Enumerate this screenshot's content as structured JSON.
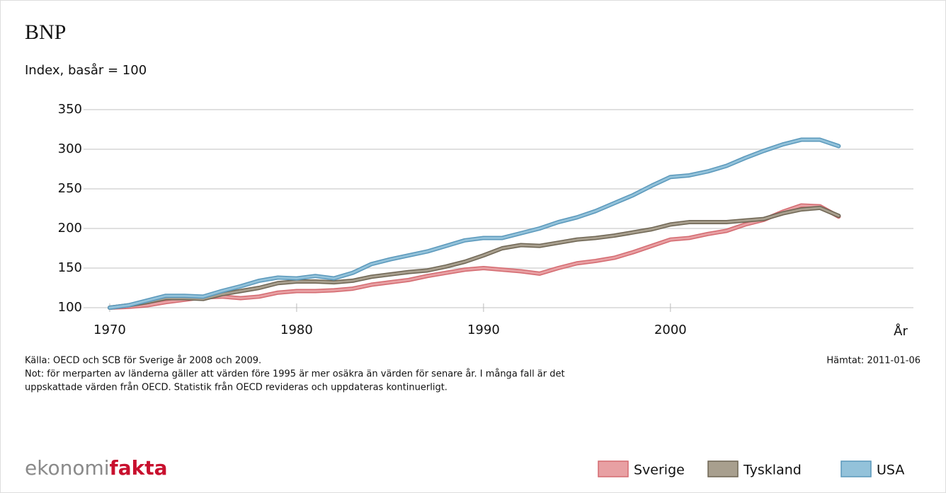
{
  "chart_data": {
    "type": "line",
    "title": "BNP",
    "subtitle": "Index, basår = 100",
    "x_label": "År",
    "x": [
      1970,
      1971,
      1972,
      1973,
      1974,
      1975,
      1976,
      1977,
      1978,
      1979,
      1980,
      1981,
      1982,
      1983,
      1984,
      1985,
      1986,
      1987,
      1988,
      1989,
      1990,
      1991,
      1992,
      1993,
      1994,
      1995,
      1996,
      1997,
      1998,
      1999,
      2000,
      2001,
      2002,
      2003,
      2004,
      2005,
      2006,
      2007,
      2008,
      2009
    ],
    "series": [
      {
        "name": "Sverige",
        "color": "#e8a0a3",
        "edge": "#d46a70",
        "values": [
          100,
          101,
          103,
          107,
          110,
          113,
          114,
          112,
          114,
          119,
          121,
          121,
          122,
          124,
          129,
          132,
          135,
          140,
          144,
          148,
          150,
          148,
          146,
          143,
          150,
          156,
          159,
          163,
          170,
          178,
          186,
          188,
          193,
          197,
          205,
          211,
          221,
          229,
          228,
          215
        ]
      },
      {
        "name": "Tyskland",
        "color": "#a89f8e",
        "edge": "#6e6553",
        "values": [
          100,
          103,
          107,
          112,
          112,
          111,
          117,
          121,
          125,
          131,
          133,
          133,
          132,
          134,
          139,
          142,
          145,
          147,
          152,
          158,
          166,
          175,
          179,
          178,
          182,
          186,
          188,
          191,
          195,
          199,
          205,
          208,
          208,
          208,
          210,
          212,
          219,
          224,
          226,
          216
        ]
      },
      {
        "name": "USA",
        "color": "#93c2da",
        "edge": "#5a98bb",
        "values": [
          100,
          103,
          109,
          115,
          115,
          114,
          121,
          127,
          134,
          138,
          137,
          140,
          137,
          144,
          155,
          161,
          166,
          171,
          178,
          185,
          188,
          188,
          194,
          200,
          208,
          214,
          222,
          232,
          242,
          254,
          265,
          267,
          272,
          279,
          289,
          298,
          306,
          312,
          312,
          304
        ]
      }
    ],
    "xlim": [
      1968.6,
      2013
    ],
    "xticks": [
      1970,
      1980,
      1990,
      2000
    ],
    "ylim": [
      100,
      350
    ],
    "yticks": [
      100,
      150,
      200,
      250,
      300,
      350
    ],
    "grid": true,
    "legend": "bottom-right",
    "source": "Källa: OECD och SCB för Sverige år 2008 och 2009.",
    "retrieved": "Hämtat: 2011-01-06",
    "note": [
      "Not: för merparten av länderna gäller att värden före 1995 är mer osäkra än värden för senare år. I många fall är det",
      "uppskattade värden från OECD. Statistik från OECD revideras och uppdateras kontinuerligt."
    ],
    "logo": [
      "ekonomi",
      "fakta"
    ]
  }
}
